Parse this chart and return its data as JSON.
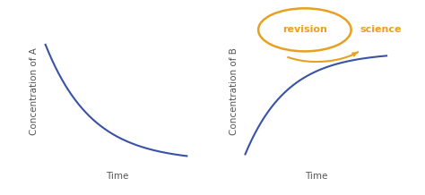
{
  "left_ylabel": "Concentration of A",
  "left_xlabel": "Time",
  "right_ylabel": "Concentration of B",
  "right_xlabel": "Time",
  "curve_color": "#3a52a4",
  "curve_linewidth": 1.5,
  "axis_color": "#444444",
  "background_color": "#ffffff",
  "logo_text1": "revision",
  "logo_text2": "science",
  "logo_color": "#e8a020",
  "label_fontsize": 7.5,
  "label_color": "#555555",
  "fig_width": 4.74,
  "fig_height": 2.18,
  "dpi": 100
}
